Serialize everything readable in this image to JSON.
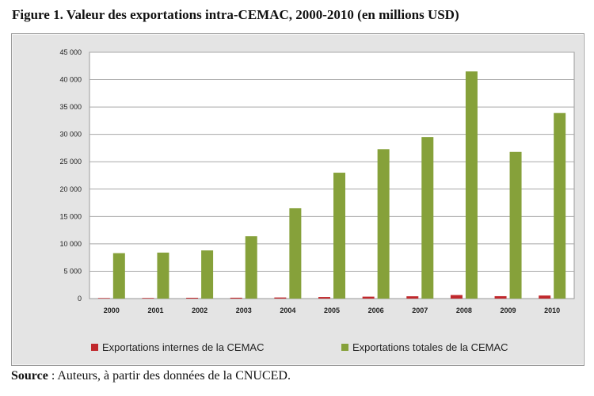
{
  "figure": {
    "title": "Figure 1. Valeur des exportations intra-CEMAC, 2000-2010 (en millions USD)",
    "source_label": "Source",
    "source_text": " : Auteurs, à partir des données de la CNUCED."
  },
  "chart_data": {
    "type": "bar",
    "title": "",
    "xlabel": "",
    "ylabel": "",
    "categories": [
      "2000",
      "2001",
      "2002",
      "2003",
      "2004",
      "2005",
      "2006",
      "2007",
      "2008",
      "2009",
      "2010"
    ],
    "ylim": [
      0,
      45000
    ],
    "yticks": [
      "0",
      "5 000",
      "10 000",
      "15 000",
      "20 000",
      "25 000",
      "30 000",
      "35 000",
      "40 000",
      "45 000"
    ],
    "grid": true,
    "legend_position": "bottom",
    "series": [
      {
        "name": "Exportations internes de la CEMAC",
        "color": "#c0282c",
        "values": [
          100,
          110,
          150,
          160,
          200,
          280,
          350,
          420,
          650,
          440,
          560
        ]
      },
      {
        "name": "Exportations totales de la CEMAC",
        "color": "#86a13a",
        "values": [
          8300,
          8400,
          8800,
          11400,
          16500,
          23000,
          27300,
          29500,
          41500,
          26800,
          33900
        ]
      }
    ]
  }
}
